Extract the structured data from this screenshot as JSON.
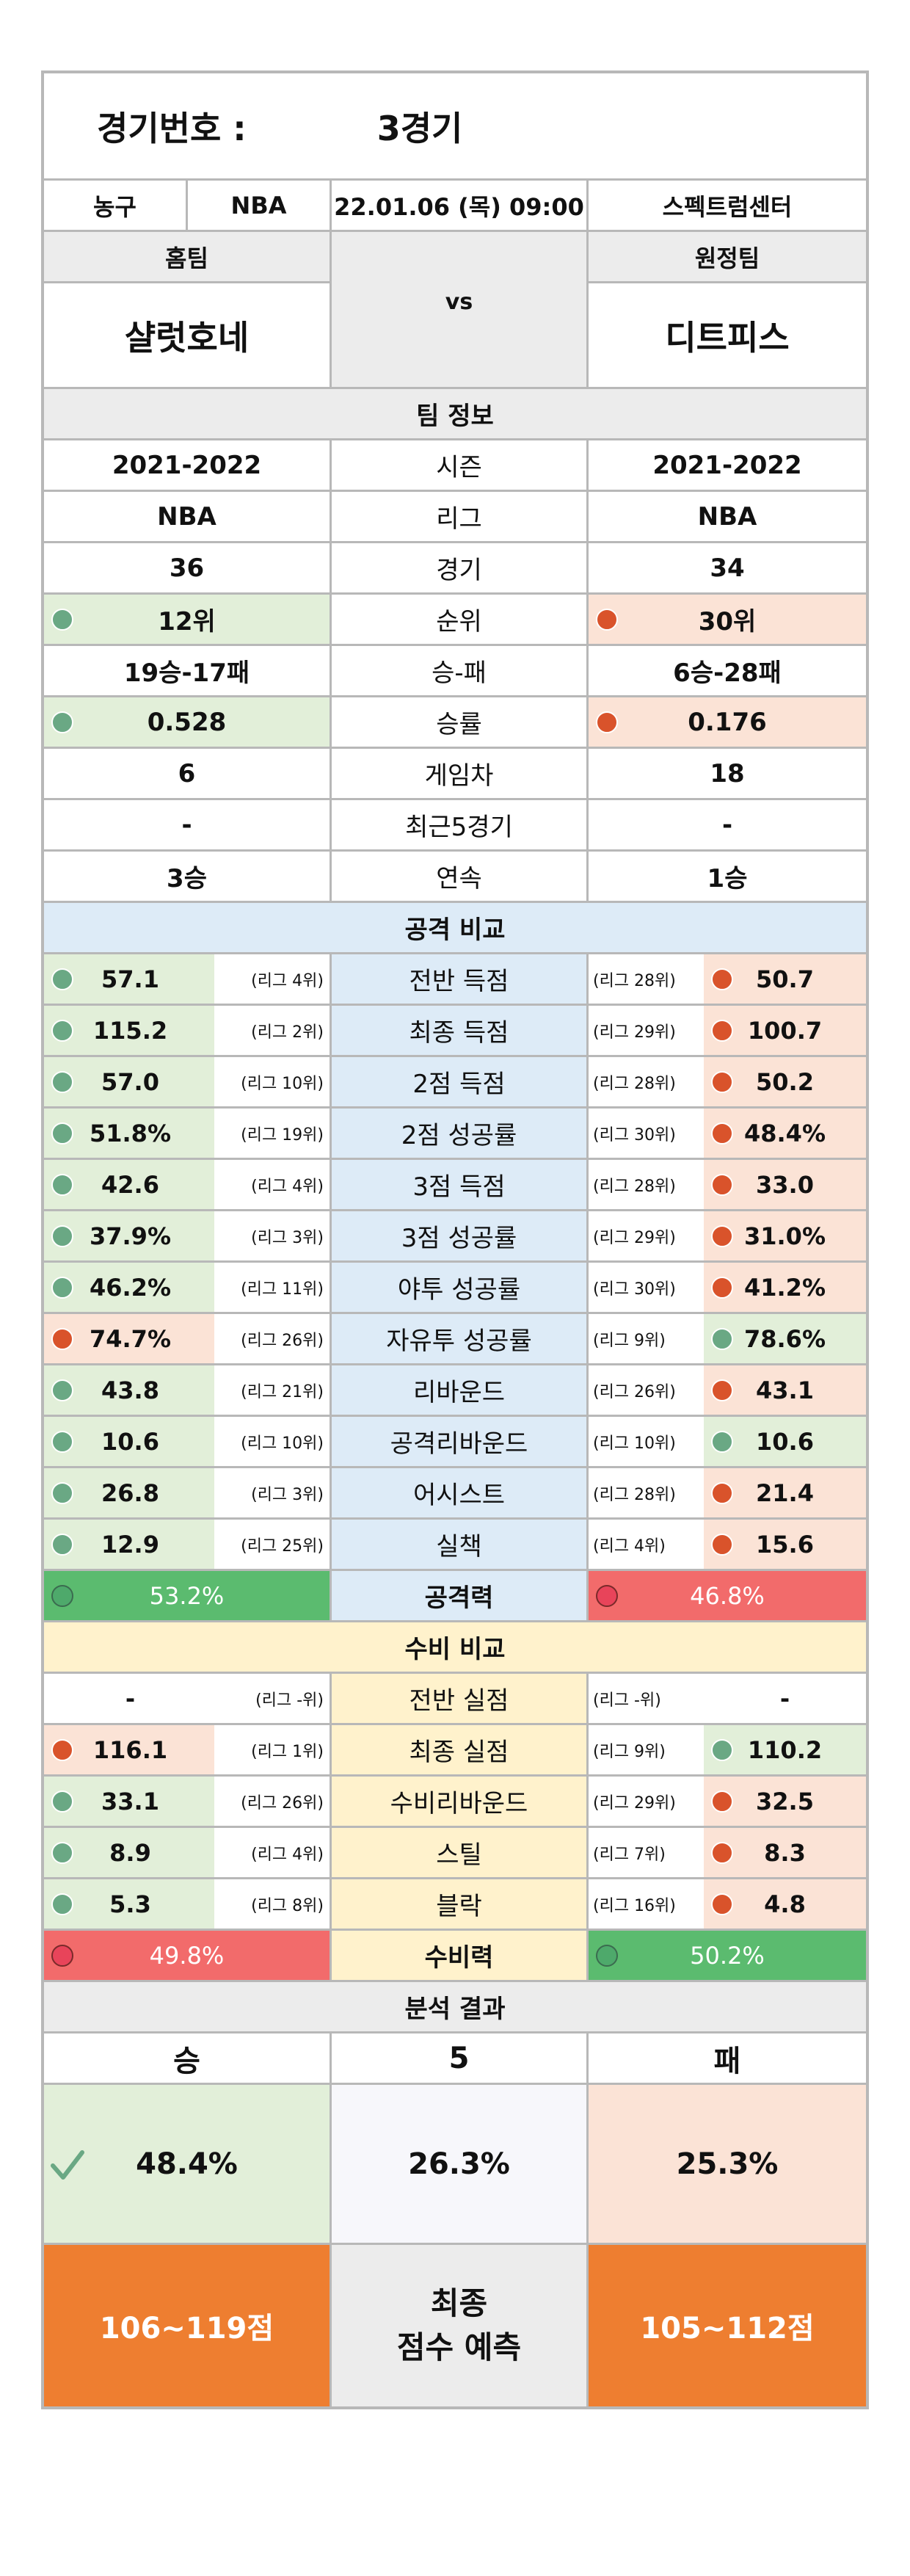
{
  "game": {
    "label": "경기번호 :",
    "number": "3경기"
  },
  "info": {
    "sport": "농구",
    "league": "NBA",
    "datetime": "22.01.06 (목) 09:00",
    "venue": "스펙트럼센터"
  },
  "teams": {
    "home_label": "홈팀",
    "away_label": "원정팀",
    "vs": "vs",
    "home": "샬럿호네",
    "away": "디트피스"
  },
  "team_info": {
    "title": "팀 정보",
    "rows": [
      {
        "label": "시즌",
        "home": "2021-2022",
        "away": "2021-2022",
        "hc": "",
        "ac": ""
      },
      {
        "label": "리그",
        "home": "NBA",
        "away": "NBA",
        "hc": "",
        "ac": ""
      },
      {
        "label": "경기",
        "home": "36",
        "away": "34",
        "hc": "",
        "ac": ""
      },
      {
        "label": "순위",
        "home": "12위",
        "away": "30위",
        "hc": "green",
        "ac": "red"
      },
      {
        "label": "승-패",
        "home": "19승-17패",
        "away": "6승-28패",
        "hc": "",
        "ac": ""
      },
      {
        "label": "승률",
        "home": "0.528",
        "away": "0.176",
        "hc": "green",
        "ac": "red"
      },
      {
        "label": "게임차",
        "home": "6",
        "away": "18",
        "hc": "",
        "ac": ""
      },
      {
        "label": "최근5경기",
        "home": "-",
        "away": "-",
        "hc": "",
        "ac": ""
      },
      {
        "label": "연속",
        "home": "3승",
        "away": "1승",
        "hc": "",
        "ac": ""
      }
    ]
  },
  "attack": {
    "title": "공격 비교",
    "rows": [
      {
        "label": "전반 득점",
        "home": "57.1",
        "home_rank": "(리그 4위)",
        "away": "50.7",
        "away_rank": "(리그 28위)",
        "hc": "green",
        "ac": "red"
      },
      {
        "label": "최종 득점",
        "home": "115.2",
        "home_rank": "(리그 2위)",
        "away": "100.7",
        "away_rank": "(리그 29위)",
        "hc": "green",
        "ac": "red"
      },
      {
        "label": "2점 득점",
        "home": "57.0",
        "home_rank": "(리그 10위)",
        "away": "50.2",
        "away_rank": "(리그 28위)",
        "hc": "green",
        "ac": "red"
      },
      {
        "label": "2점 성공률",
        "home": "51.8%",
        "home_rank": "(리그 19위)",
        "away": "48.4%",
        "away_rank": "(리그 30위)",
        "hc": "green",
        "ac": "red"
      },
      {
        "label": "3점 득점",
        "home": "42.6",
        "home_rank": "(리그 4위)",
        "away": "33.0",
        "away_rank": "(리그 28위)",
        "hc": "green",
        "ac": "red"
      },
      {
        "label": "3점 성공률",
        "home": "37.9%",
        "home_rank": "(리그 3위)",
        "away": "31.0%",
        "away_rank": "(리그 29위)",
        "hc": "green",
        "ac": "red"
      },
      {
        "label": "야투 성공률",
        "home": "46.2%",
        "home_rank": "(리그 11위)",
        "away": "41.2%",
        "away_rank": "(리그 30위)",
        "hc": "green",
        "ac": "red"
      },
      {
        "label": "자유투 성공률",
        "home": "74.7%",
        "home_rank": "(리그 26위)",
        "away": "78.6%",
        "away_rank": "(리그 9위)",
        "hc": "red",
        "ac": "green"
      },
      {
        "label": "리바운드",
        "home": "43.8",
        "home_rank": "(리그 21위)",
        "away": "43.1",
        "away_rank": "(리그 26위)",
        "hc": "green",
        "ac": "red"
      },
      {
        "label": "공격리바운드",
        "home": "10.6",
        "home_rank": "(리그 10위)",
        "away": "10.6",
        "away_rank": "(리그 10위)",
        "hc": "green",
        "ac": "green"
      },
      {
        "label": "어시스트",
        "home": "26.8",
        "home_rank": "(리그 3위)",
        "away": "21.4",
        "away_rank": "(리그 28위)",
        "hc": "green",
        "ac": "red"
      },
      {
        "label": "실책",
        "home": "12.9",
        "home_rank": "(리그 25위)",
        "away": "15.6",
        "away_rank": "(리그 4위)",
        "hc": "green",
        "ac": "red"
      }
    ],
    "power_label": "공격력",
    "home_power": "53.2%",
    "away_power": "46.8%"
  },
  "defense": {
    "title": "수비 비교",
    "rows": [
      {
        "label": "전반 실점",
        "home": "-",
        "home_rank": "(리그 -위)",
        "away": "-",
        "away_rank": "(리그 -위)",
        "hc": "",
        "ac": ""
      },
      {
        "label": "최종 실점",
        "home": "116.1",
        "home_rank": "(리그 1위)",
        "away": "110.2",
        "away_rank": "(리그 9위)",
        "hc": "red",
        "ac": "green"
      },
      {
        "label": "수비리바운드",
        "home": "33.1",
        "home_rank": "(리그 26위)",
        "away": "32.5",
        "away_rank": "(리그 29위)",
        "hc": "green",
        "ac": "red"
      },
      {
        "label": "스틸",
        "home": "8.9",
        "home_rank": "(리그 4위)",
        "away": "8.3",
        "away_rank": "(리그 7위)",
        "hc": "green",
        "ac": "red"
      },
      {
        "label": "블락",
        "home": "5.3",
        "home_rank": "(리그 8위)",
        "away": "4.8",
        "away_rank": "(리그 16위)",
        "hc": "green",
        "ac": "red"
      }
    ],
    "power_label": "수비력",
    "home_power": "49.8%",
    "away_power": "50.2%"
  },
  "result": {
    "title": "분석 결과",
    "win": "승",
    "draw": "5",
    "lose": "패",
    "win_pct": "48.4%",
    "draw_pct": "26.3%",
    "lose_pct": "25.3%",
    "check_icon": "check-icon",
    "home_score": "106~119점",
    "pred_label_1": "최종",
    "pred_label_2": "점수 예측",
    "away_score": "105~112점"
  },
  "colors": {
    "green": "#e2efd9",
    "red": "#fbe3d6",
    "orange": "#ee7e30",
    "blue": "#ddebf7",
    "yellow": "#fff2cc"
  }
}
